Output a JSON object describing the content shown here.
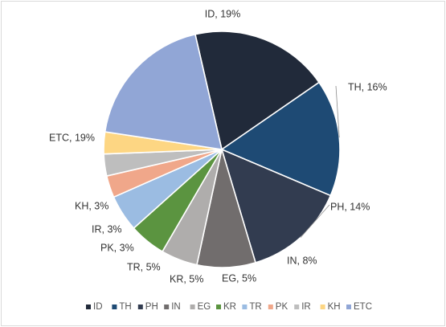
{
  "chart_data": {
    "type": "pie",
    "title": "",
    "start_angle_deg": -13,
    "legend_position": "bottom",
    "slices": [
      {
        "label": "ID",
        "value": 19,
        "data_label": "ID, 19%",
        "color": "#212a3a"
      },
      {
        "label": "TH",
        "value": 16,
        "data_label": "TH, 16%",
        "color": "#1e4a74"
      },
      {
        "label": "PH",
        "value": 14,
        "data_label": "PH, 14%",
        "color": "#323c50"
      },
      {
        "label": "IN",
        "value": 8,
        "data_label": "IN, 8%",
        "color": "#716d6d"
      },
      {
        "label": "EG",
        "value": 5,
        "data_label": "EG, 5%",
        "color": "#afadac"
      },
      {
        "label": "KR",
        "value": 5,
        "data_label": "KR, 5%",
        "color": "#5b9440"
      },
      {
        "label": "TR",
        "value": 5,
        "data_label": "TR, 5%",
        "color": "#9bbce2"
      },
      {
        "label": "PK",
        "value": 3,
        "data_label": "PK, 3%",
        "color": "#f0a78a"
      },
      {
        "label": "IR",
        "value": 3,
        "data_label": "IR, 3%",
        "color": "#bebebe"
      },
      {
        "label": "KH",
        "value": 3,
        "data_label": "KH, 3%",
        "color": "#fdd683"
      },
      {
        "label": "ETC",
        "value": 19,
        "data_label": "ETC, 19%",
        "color": "#91a6d6"
      }
    ]
  }
}
